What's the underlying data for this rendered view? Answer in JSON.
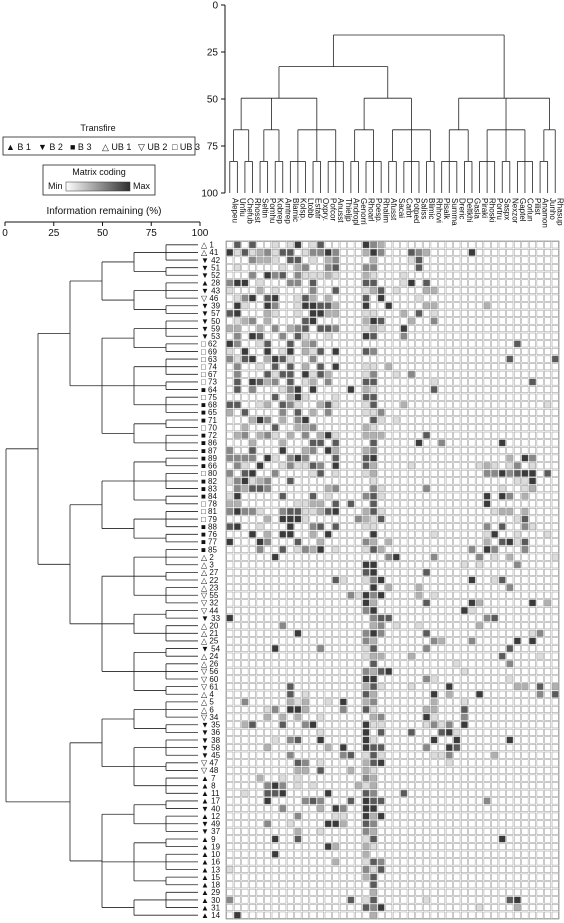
{
  "chart_data": {
    "type": "heatmap",
    "legend": {
      "title": "Transfire",
      "items": [
        {
          "symbol": "▲",
          "label": "B 1"
        },
        {
          "symbol": "▼",
          "label": "B 2"
        },
        {
          "symbol": "■",
          "label": "B 3"
        },
        {
          "symbol": "△",
          "label": "UB 1"
        },
        {
          "symbol": "▽",
          "label": "UB 2"
        },
        {
          "symbol": "□",
          "label": "UB 3"
        }
      ],
      "matrix_title": "Matrix coding",
      "min_label": "Min",
      "max_label": "Max"
    },
    "xlabel": "Information remaining (%)",
    "x_ticks": [
      "0",
      "25",
      "50",
      "75",
      "100"
    ],
    "y_ticks_top": [
      "0",
      "25",
      "50",
      "75",
      "100"
    ],
    "columns": [
      "Alepeu",
      "Unfiu",
      "Chefub",
      "Rhosst",
      "Seltin",
      "Pomhu",
      "Kobrep",
      "Amtrep",
      "Blamic",
      "Kolsp.",
      "Ltobb",
      "Estatr",
      "Oxpry.",
      "Pofcor",
      "Anusst",
      "Thieljp",
      "Andropl",
      "Genorri",
      "Rhoarl",
      "Poesp.",
      "Rhalim",
      "Afusst",
      "Sacai",
      "Carbt",
      "Potped",
      "Saliss",
      "Blimic",
      "Rhhovi",
      "Pisalk",
      "Summa",
      "Dreric",
      "Deltkhi",
      "Gasla",
      "Piraki",
      "Rhoski",
      "Portru",
      "Saspx",
      "Nexzor",
      "Gaptel",
      "Corlun",
      "Pilist",
      "Anamon",
      "Junho",
      "Rhasup"
    ],
    "rows": [
      {
        "id": "1",
        "g": "UB 1"
      },
      {
        "id": "41",
        "g": "UB 1"
      },
      {
        "id": "42",
        "g": "B 2"
      },
      {
        "id": "51",
        "g": "B 2"
      },
      {
        "id": "52",
        "g": "B 2"
      },
      {
        "id": "28",
        "g": "B 1"
      },
      {
        "id": "43",
        "g": "B 2"
      },
      {
        "id": "46",
        "g": "UB 2"
      },
      {
        "id": "39",
        "g": "B 2"
      },
      {
        "id": "57",
        "g": "B 2"
      },
      {
        "id": "50",
        "g": "B 2"
      },
      {
        "id": "59",
        "g": "B 2"
      },
      {
        "id": "53",
        "g": "B 2"
      },
      {
        "id": "62",
        "g": "UB 3"
      },
      {
        "id": "69",
        "g": "UB 3"
      },
      {
        "id": "63",
        "g": "UB 3"
      },
      {
        "id": "74",
        "g": "UB 3"
      },
      {
        "id": "67",
        "g": "UB 3"
      },
      {
        "id": "73",
        "g": "UB 3"
      },
      {
        "id": "64",
        "g": "B 3"
      },
      {
        "id": "75",
        "g": "UB 3"
      },
      {
        "id": "68",
        "g": "B 3"
      },
      {
        "id": "65",
        "g": "B 3"
      },
      {
        "id": "71",
        "g": "B 3"
      },
      {
        "id": "70",
        "g": "UB 3"
      },
      {
        "id": "72",
        "g": "B 3"
      },
      {
        "id": "86",
        "g": "B 3"
      },
      {
        "id": "87",
        "g": "B 3"
      },
      {
        "id": "89",
        "g": "B 3"
      },
      {
        "id": "66",
        "g": "B 3"
      },
      {
        "id": "80",
        "g": "UB 3"
      },
      {
        "id": "82",
        "g": "B 3"
      },
      {
        "id": "83",
        "g": "B 3"
      },
      {
        "id": "84",
        "g": "B 3"
      },
      {
        "id": "78",
        "g": "UB 3"
      },
      {
        "id": "81",
        "g": "UB 3"
      },
      {
        "id": "79",
        "g": "UB 3"
      },
      {
        "id": "88",
        "g": "B 3"
      },
      {
        "id": "76",
        "g": "B 3"
      },
      {
        "id": "77",
        "g": "B 3"
      },
      {
        "id": "85",
        "g": "B 3"
      },
      {
        "id": "2",
        "g": "UB 1"
      },
      {
        "id": "3",
        "g": "UB 1"
      },
      {
        "id": "27",
        "g": "UB 1"
      },
      {
        "id": "22",
        "g": "UB 1"
      },
      {
        "id": "23",
        "g": "UB 1"
      },
      {
        "id": "55",
        "g": "UB 2"
      },
      {
        "id": "32",
        "g": "UB 2"
      },
      {
        "id": "44",
        "g": "UB 2"
      },
      {
        "id": "33",
        "g": "B 2"
      },
      {
        "id": "20",
        "g": "UB 1"
      },
      {
        "id": "21",
        "g": "UB 1"
      },
      {
        "id": "25",
        "g": "UB 1"
      },
      {
        "id": "54",
        "g": "B 2"
      },
      {
        "id": "24",
        "g": "UB 1"
      },
      {
        "id": "26",
        "g": "UB 1"
      },
      {
        "id": "56",
        "g": "UB 2"
      },
      {
        "id": "60",
        "g": "UB 2"
      },
      {
        "id": "61",
        "g": "UB 2"
      },
      {
        "id": "4",
        "g": "UB 1"
      },
      {
        "id": "5",
        "g": "UB 1"
      },
      {
        "id": "6",
        "g": "UB 1"
      },
      {
        "id": "34",
        "g": "UB 2"
      },
      {
        "id": "35",
        "g": "B 2"
      },
      {
        "id": "36",
        "g": "B 2"
      },
      {
        "id": "38",
        "g": "B 2"
      },
      {
        "id": "58",
        "g": "B 2"
      },
      {
        "id": "45",
        "g": "B 2"
      },
      {
        "id": "47",
        "g": "UB 2"
      },
      {
        "id": "48",
        "g": "UB 2"
      },
      {
        "id": "7",
        "g": "B 1"
      },
      {
        "id": "8",
        "g": "B 1"
      },
      {
        "id": "11",
        "g": "B 1"
      },
      {
        "id": "17",
        "g": "B 1"
      },
      {
        "id": "40",
        "g": "B 2"
      },
      {
        "id": "12",
        "g": "B 1"
      },
      {
        "id": "49",
        "g": "B 2"
      },
      {
        "id": "37",
        "g": "B 2"
      },
      {
        "id": "9",
        "g": "B 1"
      },
      {
        "id": "19",
        "g": "B 1"
      },
      {
        "id": "10",
        "g": "B 1"
      },
      {
        "id": "16",
        "g": "B 1"
      },
      {
        "id": "13",
        "g": "B 1"
      },
      {
        "id": "15",
        "g": "B 1"
      },
      {
        "id": "18",
        "g": "B 1"
      },
      {
        "id": "29",
        "g": "B 1"
      },
      {
        "id": "30",
        "g": "B 1"
      },
      {
        "id": "31",
        "g": "B 1"
      },
      {
        "id": "14",
        "g": "B 1"
      }
    ]
  }
}
